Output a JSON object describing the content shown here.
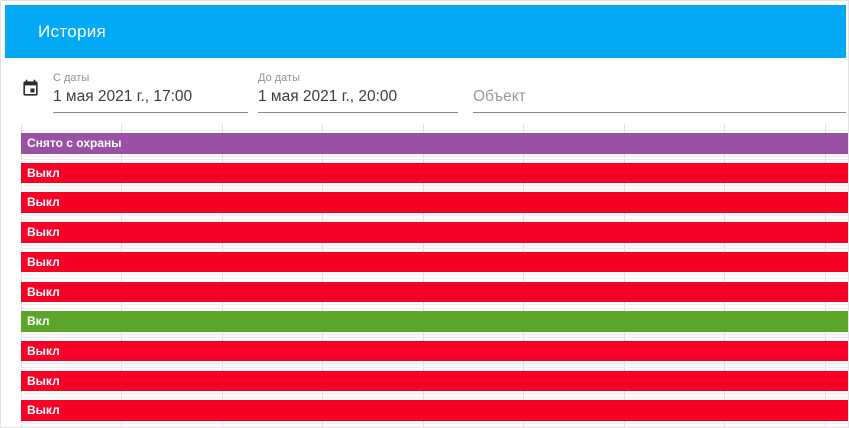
{
  "header": {
    "title": "История",
    "background": "#03A9F4"
  },
  "filters": {
    "calendar_icon": "calendar-icon",
    "from_date": {
      "label": "С даты",
      "value": "1 мая 2021 г., 17:00"
    },
    "to_date": {
      "label": "До даты",
      "value": "1 мая 2021 г., 20:00"
    },
    "object": {
      "placeholder": "Объект",
      "value": ""
    }
  },
  "colors": {
    "header": "#03A9F4",
    "status_off": "#F80126",
    "status_on": "#5CA52B",
    "status_disarmed": "#9951A3",
    "gridline": "#e0e0e0",
    "row_border": "#ededed"
  },
  "chart_data": {
    "type": "timeline",
    "title": "",
    "legend": [],
    "x_tick_labels_visible": false,
    "rows": [
      {
        "label": "Снято с охраны",
        "status": "disarmed",
        "color": "#9951A3"
      },
      {
        "label": "Выкл",
        "status": "off",
        "color": "#F80126"
      },
      {
        "label": "Выкл",
        "status": "off",
        "color": "#F80126"
      },
      {
        "label": "Выкл",
        "status": "off",
        "color": "#F80126"
      },
      {
        "label": "Выкл",
        "status": "off",
        "color": "#F80126"
      },
      {
        "label": "Выкл",
        "status": "off",
        "color": "#F80126"
      },
      {
        "label": "Вкл",
        "status": "on",
        "color": "#5CA52B"
      },
      {
        "label": "Выкл",
        "status": "off",
        "color": "#F80126"
      },
      {
        "label": "Выкл",
        "status": "off",
        "color": "#F80126"
      },
      {
        "label": "Выкл",
        "status": "off",
        "color": "#F80126"
      }
    ],
    "layout": {
      "gridline_count": 9,
      "gridline_start_x": 19.5,
      "gridline_spacing_x": 100.5,
      "first_row_y": 5.5,
      "row_pitch": 29.7,
      "bar_height": 20.5
    }
  }
}
